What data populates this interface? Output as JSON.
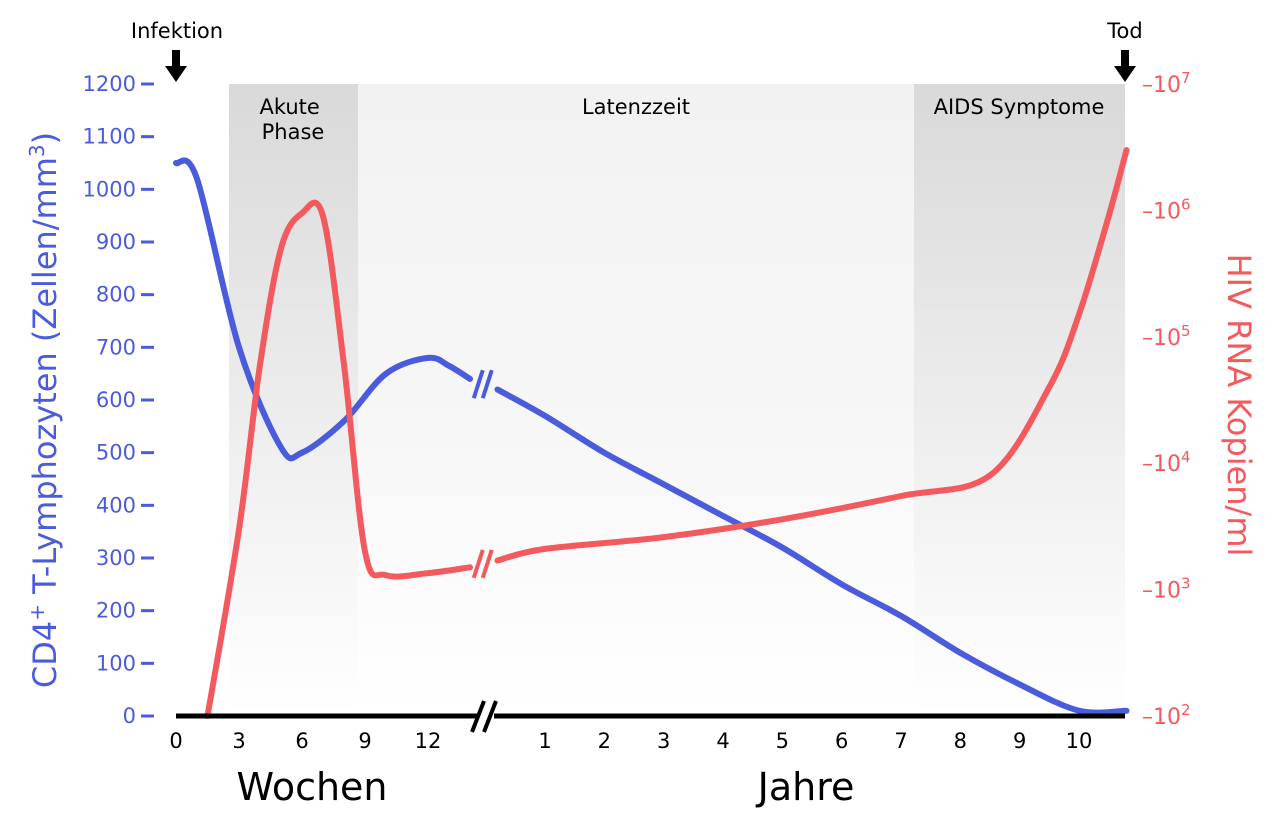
{
  "chart_data": {
    "type": "line",
    "title": "",
    "annotations": {
      "start": "Infektion",
      "end": "Tod"
    },
    "phases": [
      "Akute Phase",
      "Latenzzeit",
      "AIDS Symptome"
    ],
    "x_axis": {
      "weeks_label": "Wochen",
      "weeks_ticks": [
        "0",
        "3",
        "6",
        "9",
        "12"
      ],
      "years_label": "Jahre",
      "years_ticks": [
        "1",
        "2",
        "3",
        "4",
        "5",
        "6",
        "7",
        "8",
        "9",
        "10"
      ],
      "axis_break": true
    },
    "y_left": {
      "label_parts": [
        "CD4",
        "+",
        " T-Lymphozyten (Zellen/mm",
        "3",
        ")"
      ],
      "ylim": [
        0,
        1200
      ],
      "ticks": [
        "0",
        "100",
        "200",
        "300",
        "400",
        "500",
        "600",
        "700",
        "800",
        "900",
        "1000",
        "1100",
        "1200"
      ],
      "color": "#4a5bdc"
    },
    "y_right": {
      "label": "HIV RNA Kopien/ml",
      "scale": "log",
      "ylim": [
        100,
        10000000
      ],
      "tick_mantissa": "10",
      "tick_exponents": [
        "2",
        "3",
        "4",
        "5",
        "6",
        "7"
      ],
      "tick_prefix": "–",
      "color": "#f25a5e"
    },
    "series": [
      {
        "axis": "left",
        "color": "#4a5bdc",
        "weeks": [
          [
            0,
            1050
          ],
          [
            1,
            1020
          ],
          [
            3,
            700
          ],
          [
            5,
            510
          ],
          [
            6,
            500
          ],
          [
            8,
            560
          ],
          [
            10,
            650
          ],
          [
            12,
            680
          ],
          [
            13,
            665
          ],
          [
            14,
            640
          ]
        ],
        "years": [
          [
            0.2,
            620
          ],
          [
            1,
            570
          ],
          [
            2,
            500
          ],
          [
            3,
            440
          ],
          [
            4,
            380
          ],
          [
            5,
            320
          ],
          [
            6,
            250
          ],
          [
            7,
            190
          ],
          [
            8,
            120
          ],
          [
            9,
            60
          ],
          [
            10,
            10
          ],
          [
            10.8,
            10
          ]
        ]
      },
      {
        "axis": "right",
        "color": "#f25a5e",
        "weeks": [
          [
            1.5,
            100
          ],
          [
            3,
            3000
          ],
          [
            4,
            60000
          ],
          [
            5,
            500000
          ],
          [
            6,
            950000
          ],
          [
            7,
            900000
          ],
          [
            8,
            60000
          ],
          [
            9,
            2000
          ],
          [
            10,
            1300
          ],
          [
            12,
            1350
          ],
          [
            14,
            1500
          ]
        ],
        "years": [
          [
            0.2,
            1700
          ],
          [
            1,
            2100
          ],
          [
            3,
            2600
          ],
          [
            5,
            3600
          ],
          [
            7,
            5500
          ],
          [
            8.5,
            8000
          ],
          [
            9.5,
            40000
          ],
          [
            10,
            150000
          ],
          [
            10.5,
            900000
          ],
          [
            10.8,
            3000000
          ]
        ]
      }
    ]
  }
}
